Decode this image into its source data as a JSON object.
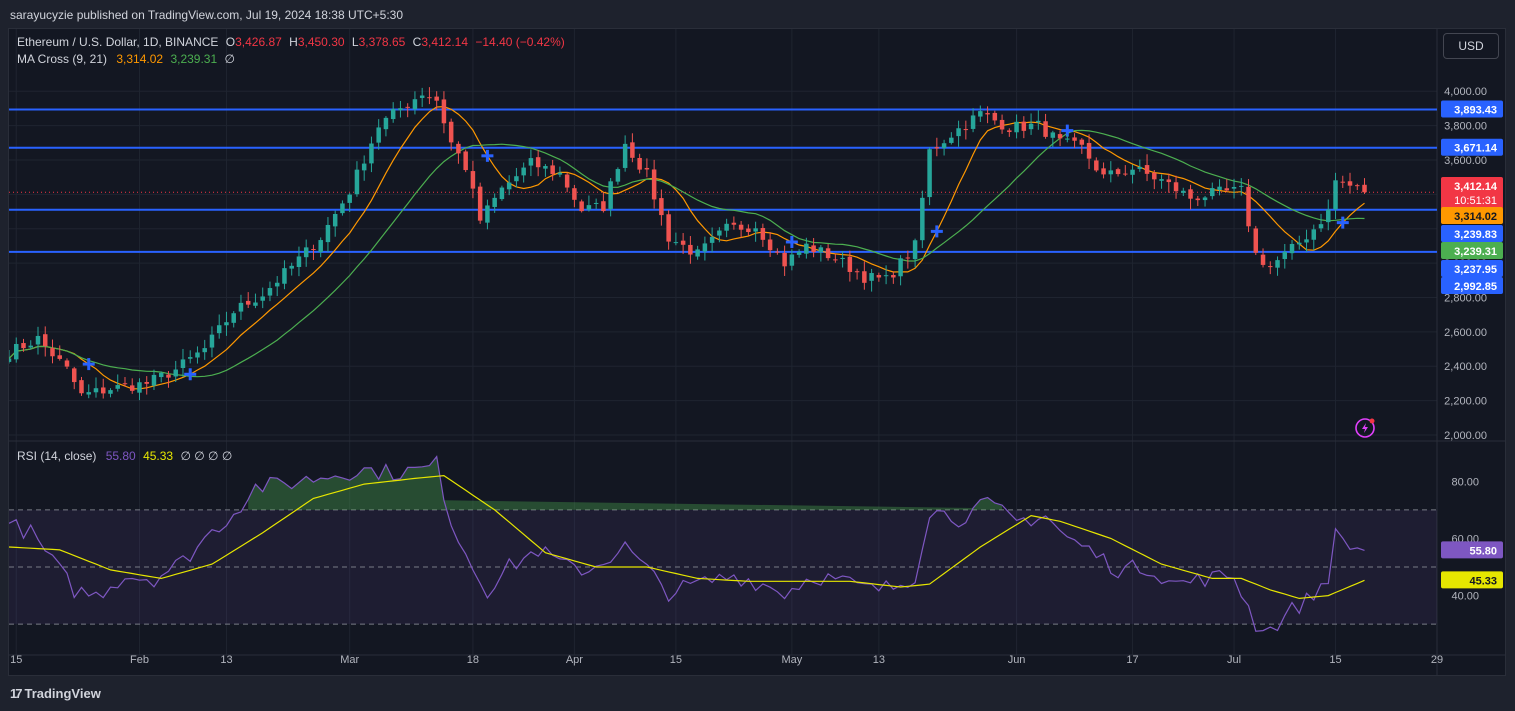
{
  "header": {
    "publisher": "sarayucyzie published on TradingView.com, Jul 19, 2024 18:38 UTC+5:30"
  },
  "legend": {
    "symbol": "Ethereum / U.S. Dollar, 1D, BINANCE",
    "o_label": "O",
    "o_value": "3,426.87",
    "h_label": "H",
    "h_value": "3,450.30",
    "l_label": "L",
    "l_value": "3,378.65",
    "c_label": "C",
    "c_value": "3,412.14",
    "change": "−14.40 (−0.42%)",
    "ma_label": "MA Cross (9, 21)",
    "ma_fast": "3,314.02",
    "ma_slow": "3,239.31",
    "ma_suffix": "∅",
    "rsi_label": "RSI (14, close)",
    "rsi_value": "55.80",
    "rsi_ma": "45.33",
    "rsi_suffix": "∅ ∅ ∅ ∅"
  },
  "currency_button": "USD",
  "footer": {
    "brand": "TradingView"
  },
  "colors": {
    "up": "#26a69a",
    "down": "#ef5350",
    "ma_fast": "#ff9800",
    "ma_slow": "#4caf50",
    "hline": "#2962ff",
    "rsi": "#7e57c2",
    "rsi_ma": "#e6e600",
    "bg": "#131722"
  },
  "chart_data": [
    {
      "type": "candlestick",
      "title": "Ethereum / U.S. Dollar, 1D, BINANCE",
      "yaxis": "right",
      "ylim": [
        2000,
        4100
      ],
      "y_ticks": [
        2000,
        2200,
        2400,
        2600,
        2800,
        3000,
        3200,
        3400,
        3600,
        3800,
        4000
      ],
      "y_tick_labels": [
        "2,000.00",
        "2,200.00",
        "2,400.00",
        "2,600.00",
        "2,800.00",
        "3,000.00",
        "3,200.00",
        "3,400.00",
        "3,600.00",
        "3,800.00",
        "4,000.00"
      ],
      "x_ticks": [
        {
          "date": "2024-01-15",
          "label": "15"
        },
        {
          "date": "2024-02-01",
          "label": "Feb"
        },
        {
          "date": "2024-02-13",
          "label": "13"
        },
        {
          "date": "2024-03-01",
          "label": "Mar"
        },
        {
          "date": "2024-03-18",
          "label": "18"
        },
        {
          "date": "2024-04-01",
          "label": "Apr"
        },
        {
          "date": "2024-04-15",
          "label": "15"
        },
        {
          "date": "2024-05-01",
          "label": "May"
        },
        {
          "date": "2024-05-13",
          "label": "13"
        },
        {
          "date": "2024-06-01",
          "label": "Jun"
        },
        {
          "date": "2024-06-17",
          "label": "17"
        },
        {
          "date": "2024-07-01",
          "label": "Jul"
        },
        {
          "date": "2024-07-15",
          "label": "15"
        },
        {
          "date": "2024-07-29",
          "label": "29"
        }
      ],
      "xlim": [
        "2024-01-14",
        "2024-07-29"
      ],
      "close_anchors": [
        [
          "2024-01-14",
          2480
        ],
        [
          "2024-01-18",
          2560
        ],
        [
          "2024-01-22",
          2380
        ],
        [
          "2024-01-24",
          2230
        ],
        [
          "2024-01-28",
          2270
        ],
        [
          "2024-02-02",
          2300
        ],
        [
          "2024-02-06",
          2380
        ],
        [
          "2024-02-10",
          2500
        ],
        [
          "2024-02-14",
          2720
        ],
        [
          "2024-02-18",
          2820
        ],
        [
          "2024-02-22",
          2980
        ],
        [
          "2024-02-26",
          3150
        ],
        [
          "2024-03-01",
          3420
        ],
        [
          "2024-03-05",
          3800
        ],
        [
          "2024-03-08",
          3900
        ],
        [
          "2024-03-11",
          3990
        ],
        [
          "2024-03-13",
          3950
        ],
        [
          "2024-03-15",
          3700
        ],
        [
          "2024-03-17",
          3560
        ],
        [
          "2024-03-19",
          3250
        ],
        [
          "2024-03-22",
          3430
        ],
        [
          "2024-03-26",
          3580
        ],
        [
          "2024-03-30",
          3520
        ],
        [
          "2024-04-02",
          3310
        ],
        [
          "2024-04-05",
          3330
        ],
        [
          "2024-04-08",
          3700
        ],
        [
          "2024-04-11",
          3510
        ],
        [
          "2024-04-14",
          3150
        ],
        [
          "2024-04-18",
          3050
        ],
        [
          "2024-04-22",
          3200
        ],
        [
          "2024-04-26",
          3220
        ],
        [
          "2024-04-30",
          3000
        ],
        [
          "2024-05-03",
          3100
        ],
        [
          "2024-05-07",
          3030
        ],
        [
          "2024-05-11",
          2920
        ],
        [
          "2024-05-14",
          2900
        ],
        [
          "2024-05-18",
          3100
        ],
        [
          "2024-05-20",
          3650
        ],
        [
          "2024-05-23",
          3750
        ],
        [
          "2024-05-27",
          3870
        ],
        [
          "2024-05-31",
          3790
        ],
        [
          "2024-06-04",
          3800
        ],
        [
          "2024-06-07",
          3700
        ],
        [
          "2024-06-10",
          3670
        ],
        [
          "2024-06-13",
          3500
        ],
        [
          "2024-06-17",
          3550
        ],
        [
          "2024-06-21",
          3480
        ],
        [
          "2024-06-25",
          3380
        ],
        [
          "2024-06-29",
          3410
        ],
        [
          "2024-07-02",
          3420
        ],
        [
          "2024-07-04",
          3050
        ],
        [
          "2024-07-06",
          2980
        ],
        [
          "2024-07-09",
          3080
        ],
        [
          "2024-07-12",
          3200
        ],
        [
          "2024-07-14",
          3300
        ],
        [
          "2024-07-15",
          3480
        ],
        [
          "2024-07-17",
          3450
        ],
        [
          "2024-07-19",
          3412
        ]
      ],
      "horizontal_levels": [
        {
          "price": 3893.43,
          "label": "3,893.43"
        },
        {
          "price": 3671.14,
          "label": "3,671.14"
        },
        {
          "price": 3310.0,
          "label": null
        },
        {
          "price": 3065.0,
          "label": null
        }
      ],
      "price_tags": [
        {
          "label": "3,412.14",
          "sub": "10:51:31",
          "color": "#f23645",
          "price": 3412.14
        },
        {
          "label": "3,314.02",
          "color": "#ff9800",
          "price": 3314.02
        },
        {
          "label": "3,239.83",
          "color": "#2962ff",
          "price": 3239.83
        },
        {
          "label": "3,239.31",
          "color": "#4caf50",
          "price": 3239.31
        },
        {
          "label": "3,237.95",
          "color": "#2962ff",
          "price": 3237.95
        },
        {
          "label": "2,992.85",
          "color": "#2962ff",
          "price": 2992.85
        }
      ],
      "series": [
        {
          "name": "MA Cross (9, 21) fast",
          "period": 9,
          "color": "#ff9800"
        },
        {
          "name": "MA Cross (9, 21) slow",
          "period": 21,
          "color": "#4caf50"
        }
      ],
      "cross_markers": [
        "2024-01-25",
        "2024-02-08",
        "2024-03-20",
        "2024-05-01",
        "2024-05-21",
        "2024-06-08",
        "2024-07-16"
      ]
    },
    {
      "type": "line",
      "title": "RSI (14, close)",
      "ylim": [
        22,
        92
      ],
      "y_ticks": [
        40,
        60,
        80
      ],
      "y_tick_labels": [
        "40.00",
        "60.00",
        "80.00"
      ],
      "bands": {
        "upper": 70,
        "middle": 50,
        "lower": 30
      },
      "rsi_anchors": [
        [
          "2024-01-14",
          65
        ],
        [
          "2024-01-17",
          62
        ],
        [
          "2024-01-20",
          52
        ],
        [
          "2024-01-23",
          42
        ],
        [
          "2024-01-26",
          40
        ],
        [
          "2024-01-30",
          47
        ],
        [
          "2024-02-03",
          46
        ],
        [
          "2024-02-07",
          52
        ],
        [
          "2024-02-10",
          60
        ],
        [
          "2024-02-14",
          69
        ],
        [
          "2024-02-17",
          78
        ],
        [
          "2024-02-21",
          79
        ],
        [
          "2024-02-25",
          81
        ],
        [
          "2024-02-29",
          83
        ],
        [
          "2024-03-03",
          84
        ],
        [
          "2024-03-07",
          83
        ],
        [
          "2024-03-11",
          84
        ],
        [
          "2024-03-13",
          86
        ],
        [
          "2024-03-15",
          66
        ],
        [
          "2024-03-18",
          50
        ],
        [
          "2024-03-20",
          42
        ],
        [
          "2024-03-23",
          50
        ],
        [
          "2024-03-27",
          56
        ],
        [
          "2024-03-31",
          50
        ],
        [
          "2024-04-03",
          49
        ],
        [
          "2024-04-08",
          57
        ],
        [
          "2024-04-11",
          49
        ],
        [
          "2024-04-14",
          41
        ],
        [
          "2024-04-18",
          44
        ],
        [
          "2024-04-23",
          47
        ],
        [
          "2024-04-27",
          44
        ],
        [
          "2024-04-30",
          41
        ],
        [
          "2024-05-04",
          47
        ],
        [
          "2024-05-08",
          45
        ],
        [
          "2024-05-12",
          42
        ],
        [
          "2024-05-15",
          43
        ],
        [
          "2024-05-18",
          47
        ],
        [
          "2024-05-20",
          70
        ],
        [
          "2024-05-24",
          67
        ],
        [
          "2024-05-28",
          72
        ],
        [
          "2024-06-01",
          66
        ],
        [
          "2024-06-05",
          68
        ],
        [
          "2024-06-08",
          60
        ],
        [
          "2024-06-11",
          56
        ],
        [
          "2024-06-15",
          49
        ],
        [
          "2024-06-19",
          50
        ],
        [
          "2024-06-23",
          44
        ],
        [
          "2024-06-27",
          46
        ],
        [
          "2024-07-01",
          47
        ],
        [
          "2024-07-04",
          30
        ],
        [
          "2024-07-06",
          28
        ],
        [
          "2024-07-09",
          35
        ],
        [
          "2024-07-12",
          40
        ],
        [
          "2024-07-14",
          47
        ],
        [
          "2024-07-15",
          61
        ],
        [
          "2024-07-18",
          56
        ],
        [
          "2024-07-19",
          55.8
        ]
      ],
      "rsi_ma_anchors": [
        [
          "2024-01-14",
          57
        ],
        [
          "2024-01-21",
          56
        ],
        [
          "2024-01-28",
          49
        ],
        [
          "2024-02-04",
          46
        ],
        [
          "2024-02-11",
          51
        ],
        [
          "2024-02-18",
          62
        ],
        [
          "2024-02-25",
          74
        ],
        [
          "2024-03-03",
          79
        ],
        [
          "2024-03-10",
          81
        ],
        [
          "2024-03-14",
          82
        ],
        [
          "2024-03-21",
          70
        ],
        [
          "2024-03-28",
          55
        ],
        [
          "2024-04-04",
          50
        ],
        [
          "2024-04-11",
          50
        ],
        [
          "2024-04-18",
          46
        ],
        [
          "2024-04-25",
          45
        ],
        [
          "2024-05-02",
          45
        ],
        [
          "2024-05-09",
          45
        ],
        [
          "2024-05-16",
          43
        ],
        [
          "2024-05-20",
          44
        ],
        [
          "2024-05-27",
          57
        ],
        [
          "2024-06-03",
          68
        ],
        [
          "2024-06-07",
          66
        ],
        [
          "2024-06-14",
          60
        ],
        [
          "2024-06-21",
          51
        ],
        [
          "2024-06-28",
          46
        ],
        [
          "2024-07-02",
          46
        ],
        [
          "2024-07-06",
          42
        ],
        [
          "2024-07-10",
          39
        ],
        [
          "2024-07-14",
          40
        ],
        [
          "2024-07-19",
          45.33
        ]
      ],
      "value_tags": [
        {
          "label": "55.80",
          "color": "#7e57c2",
          "value": 55.8
        },
        {
          "label": "45.33",
          "color": "#e6e600",
          "value": 45.33
        }
      ]
    }
  ]
}
